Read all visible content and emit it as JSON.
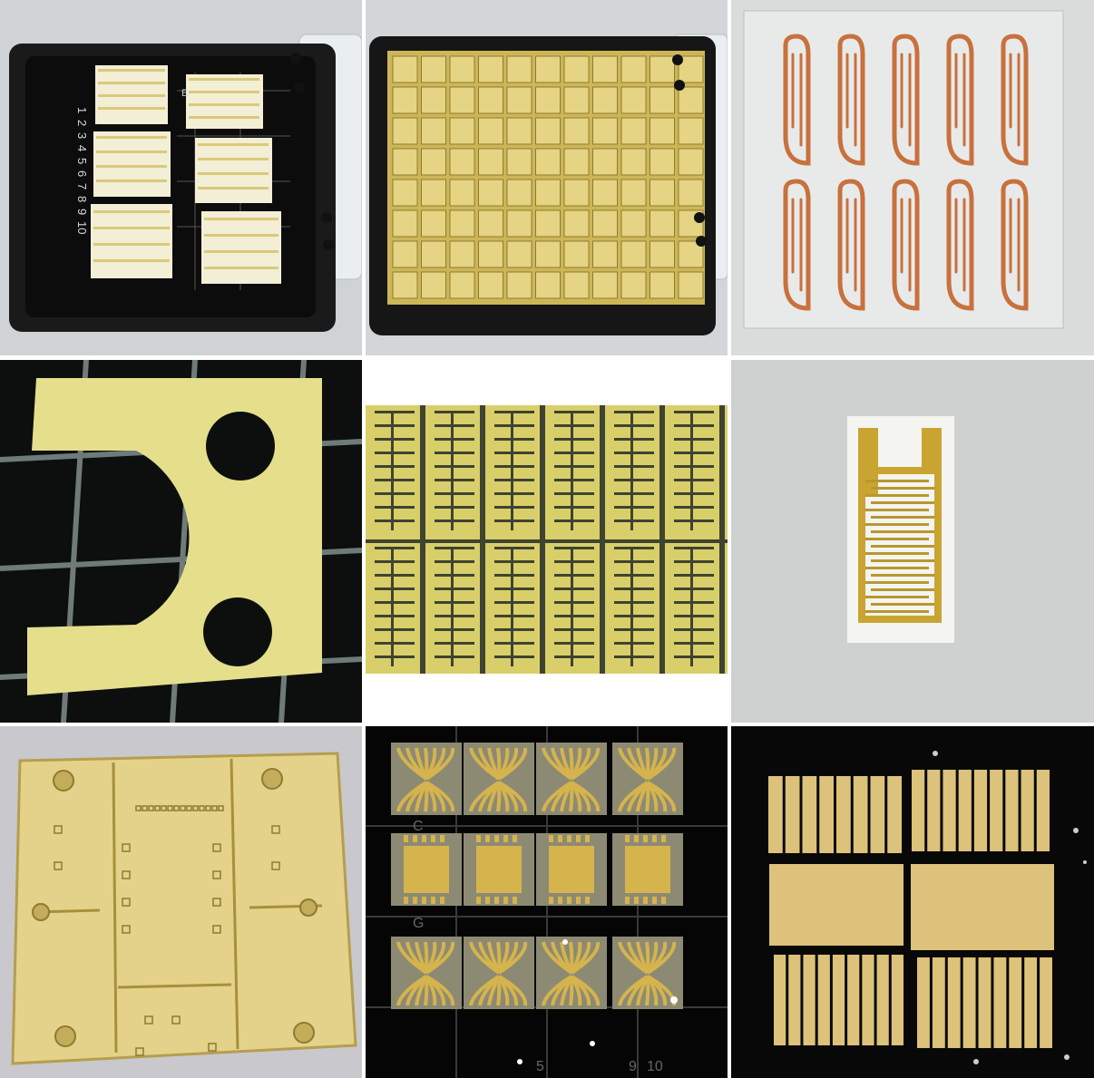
{
  "tray1": {
    "column_letter": "E",
    "row_numbers": [
      "1",
      "2",
      "3",
      "4",
      "5",
      "6",
      "7",
      "8",
      "9",
      "10"
    ]
  },
  "tray8": {
    "row_letters": [
      "C",
      "G"
    ],
    "column_numbers": [
      "5",
      "9",
      "10"
    ]
  },
  "colors": {
    "gold": "#d8c46a",
    "gold_light": "#f1e7a8",
    "copper": "#c8713d",
    "tray_black": "#141414",
    "grid_line": "#7f8a86"
  }
}
